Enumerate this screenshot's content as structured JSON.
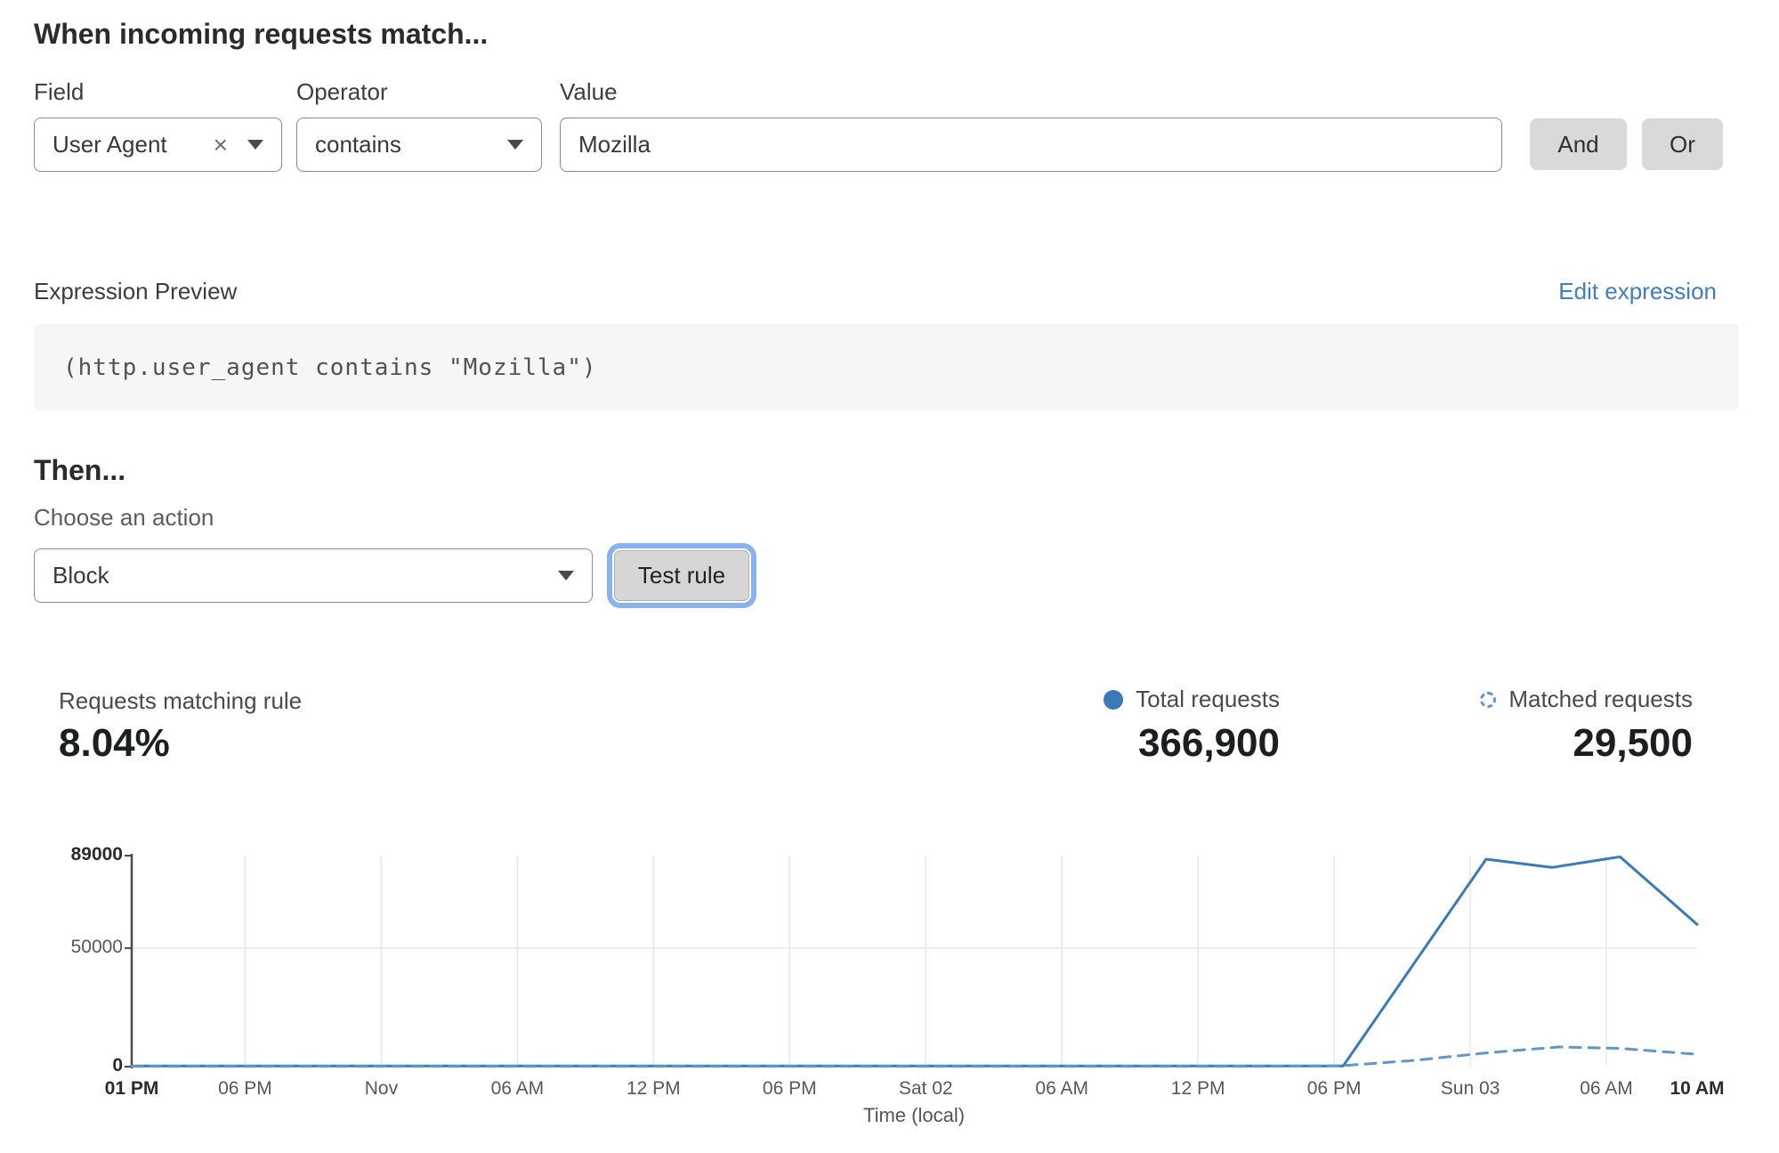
{
  "rule_builder": {
    "heading": "When incoming requests match...",
    "field": {
      "label": "Field",
      "value": "User Agent"
    },
    "operator": {
      "label": "Operator",
      "value": "contains"
    },
    "value": {
      "label": "Value",
      "value": "Mozilla"
    },
    "and_label": "And",
    "or_label": "Or",
    "expression_preview": {
      "label": "Expression Preview",
      "edit_link": "Edit expression",
      "expression": "(http.user_agent contains \"Mozilla\")"
    },
    "then_heading": "Then...",
    "action_label": "Choose an action",
    "action_value": "Block",
    "test_rule_label": "Test rule"
  },
  "analytics": {
    "match_stat": {
      "label": "Requests matching rule",
      "value": "8.04%"
    },
    "legend": {
      "total": {
        "label": "Total requests",
        "value": "366,900"
      },
      "matched": {
        "label": "Matched requests",
        "value": "29,500"
      }
    }
  },
  "chart_data": {
    "type": "line",
    "title": "",
    "xlabel": "Time (local)",
    "ylabel": "",
    "ylim": [
      0,
      89000
    ],
    "yticks": [
      {
        "value": 89000,
        "label": "89000",
        "bold": true
      },
      {
        "value": 50000,
        "label": "50000",
        "bold": false
      },
      {
        "value": 0,
        "label": "0",
        "bold": true
      }
    ],
    "x_span_hours": 69,
    "xticks": [
      {
        "hour": 0,
        "label": "01 PM",
        "bold": true
      },
      {
        "hour": 5,
        "label": "06 PM",
        "bold": false
      },
      {
        "hour": 11,
        "label": "Nov",
        "bold": false
      },
      {
        "hour": 17,
        "label": "06 AM",
        "bold": false
      },
      {
        "hour": 23,
        "label": "12 PM",
        "bold": false
      },
      {
        "hour": 29,
        "label": "06 PM",
        "bold": false
      },
      {
        "hour": 35,
        "label": "Sat 02",
        "bold": false
      },
      {
        "hour": 41,
        "label": "06 AM",
        "bold": false
      },
      {
        "hour": 47,
        "label": "12 PM",
        "bold": false
      },
      {
        "hour": 53,
        "label": "06 PM",
        "bold": false
      },
      {
        "hour": 59,
        "label": "Sun 03",
        "bold": false
      },
      {
        "hour": 65,
        "label": "06 AM",
        "bold": false
      },
      {
        "hour": 69,
        "label": "10 AM",
        "bold": true
      }
    ],
    "grid": {
      "horizontal_values": [
        50000
      ],
      "vertical": "inner-ticks-only"
    },
    "legend_position": "top-right-above-chart",
    "series": [
      {
        "name": "Total requests",
        "style": "solid",
        "color": "#3a7ab8",
        "points": [
          [
            0,
            300
          ],
          [
            10,
            300
          ],
          [
            20,
            300
          ],
          [
            30,
            300
          ],
          [
            40,
            300
          ],
          [
            50,
            300
          ],
          [
            53.4,
            300
          ],
          [
            59.7,
            87500
          ],
          [
            62.6,
            84000
          ],
          [
            65.6,
            88500
          ],
          [
            69,
            60000
          ]
        ]
      },
      {
        "name": "Matched requests",
        "style": "dashed",
        "color": "#5f97cc",
        "points": [
          [
            0,
            150
          ],
          [
            10,
            150
          ],
          [
            20,
            150
          ],
          [
            30,
            150
          ],
          [
            40,
            150
          ],
          [
            50,
            150
          ],
          [
            53.4,
            400
          ],
          [
            56.5,
            2600
          ],
          [
            59.7,
            5800
          ],
          [
            62.9,
            8300
          ],
          [
            65.6,
            7700
          ],
          [
            69,
            5200
          ]
        ]
      }
    ]
  },
  "colors": {
    "accent_blue": "#3a7ab8",
    "dashed_blue": "#5f97cc",
    "link_blue": "#3f7ec1",
    "button_gray": "#d9d9d9",
    "focus_ring_blue": "#8ab2f0",
    "code_bg": "#f6f6f6",
    "grid_gray": "#e7e7e7",
    "axis_gray": "#4a4a4a"
  }
}
